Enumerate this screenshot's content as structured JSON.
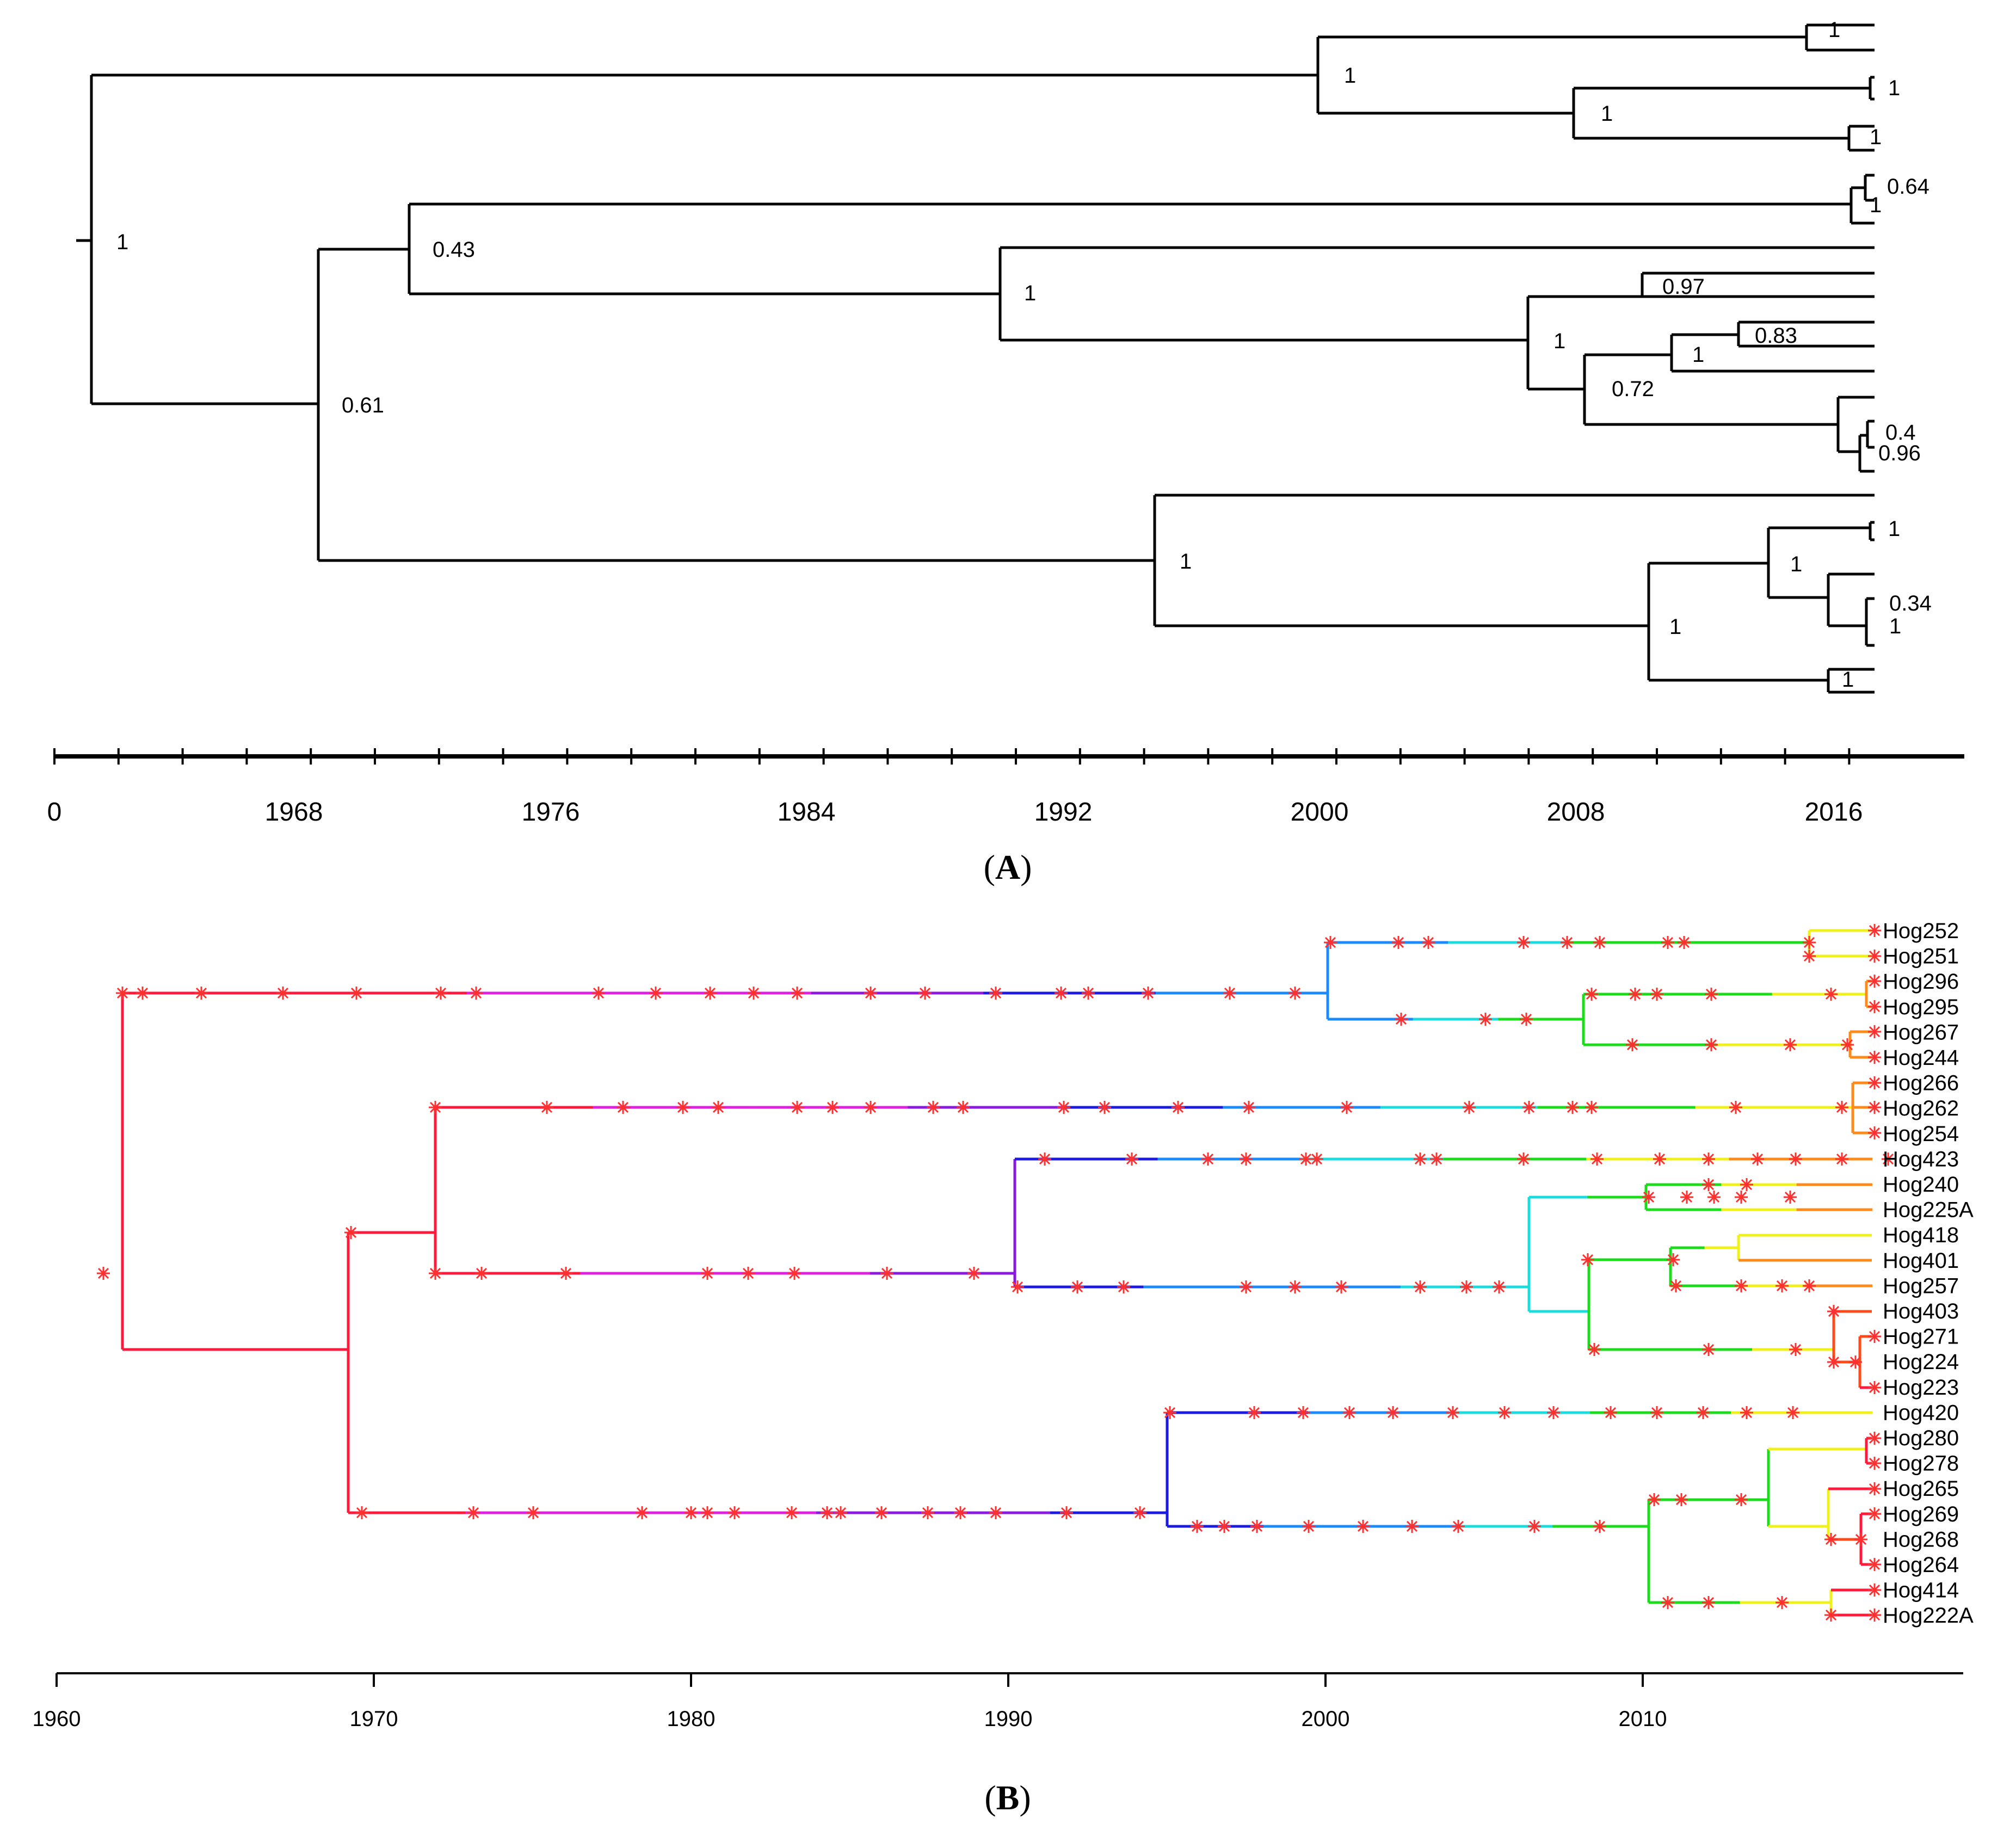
{
  "panel_a": {
    "label": "A",
    "axis_ticks": [
      "0",
      "1968",
      "1976",
      "1984",
      "1992",
      "2000",
      "2008",
      "2016"
    ],
    "support_values": [
      "1",
      "0.61",
      "0.43",
      "1",
      "1",
      "1",
      "1",
      "0.97",
      "1",
      "0.72",
      "1",
      "0.83",
      "0.4",
      "0.96",
      "1",
      "1",
      "1",
      "1",
      "1",
      "1",
      "0.64",
      "1",
      "1",
      "1",
      "0.34"
    ]
  },
  "panel_b": {
    "label": "B",
    "axis_ticks": [
      "1960",
      "1970",
      "1980",
      "1990",
      "2000",
      "2010"
    ],
    "taxa": [
      "Hog252",
      "Hog251",
      "Hog296",
      "Hog295",
      "Hog267",
      "Hog244",
      "Hog266",
      "Hog262",
      "Hog254",
      "Hog423",
      "Hog240",
      "Hog225A",
      "Hog418",
      "Hog401",
      "Hog257",
      "Hog403",
      "Hog271",
      "Hog224",
      "Hog223",
      "Hog420",
      "Hog280",
      "Hog278",
      "Hog265",
      "Hog269",
      "Hog268",
      "Hog264",
      "Hog414",
      "Hog222A"
    ],
    "colors": {
      "red": "#ff1a3c",
      "magenta": "#e020e0",
      "violet": "#8a1ae0",
      "blue": "#1a1ae0",
      "azure": "#1a8aff",
      "cyan": "#1adcdc",
      "green": "#1adc1a",
      "yellow": "#f0f01a",
      "orange": "#ff8a1a",
      "orange_red": "#ff4a1a",
      "marker": "#ff3030"
    }
  }
}
